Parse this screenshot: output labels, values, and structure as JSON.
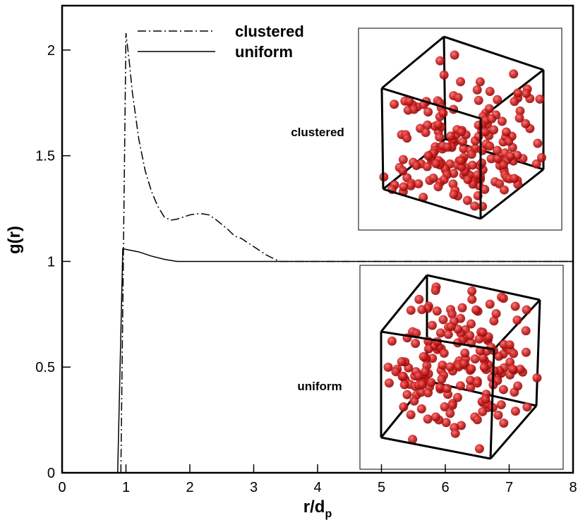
{
  "chart_data": {
    "type": "line",
    "xlabel": "r/d",
    "xlabel_sub": "p",
    "ylabel": "g(r)",
    "xlim": [
      0,
      8
    ],
    "ylim": [
      0,
      2.21
    ],
    "xticks": [
      0,
      1,
      2,
      3,
      4,
      5,
      6,
      7,
      8
    ],
    "yticks": [
      0,
      0.5,
      1,
      1.5,
      2
    ],
    "annotations": [
      "clustered",
      "uniform"
    ],
    "series": [
      {
        "name": "clustered",
        "color": "#000000",
        "dash": "dashdot",
        "x": [
          0.92,
          1.0,
          1.05,
          1.1,
          1.2,
          1.3,
          1.4,
          1.5,
          1.6,
          1.7,
          1.8,
          1.9,
          2.0,
          2.1,
          2.2,
          2.3,
          2.4,
          2.5,
          2.6,
          2.7,
          2.8,
          2.9,
          3.0,
          3.2,
          3.4,
          8
        ],
        "values": [
          0,
          2.08,
          1.95,
          1.8,
          1.58,
          1.43,
          1.33,
          1.26,
          1.21,
          1.195,
          1.2,
          1.21,
          1.22,
          1.225,
          1.225,
          1.22,
          1.2,
          1.175,
          1.15,
          1.12,
          1.11,
          1.09,
          1.07,
          1.03,
          1.0,
          1.0
        ]
      },
      {
        "name": "uniform",
        "color": "#000000",
        "dash": "solid",
        "x": [
          0.87,
          0.95,
          1.2,
          1.4,
          1.6,
          1.8,
          8
        ],
        "values": [
          0,
          1.06,
          1.045,
          1.025,
          1.01,
          1.0,
          1.0
        ]
      }
    ]
  }
}
